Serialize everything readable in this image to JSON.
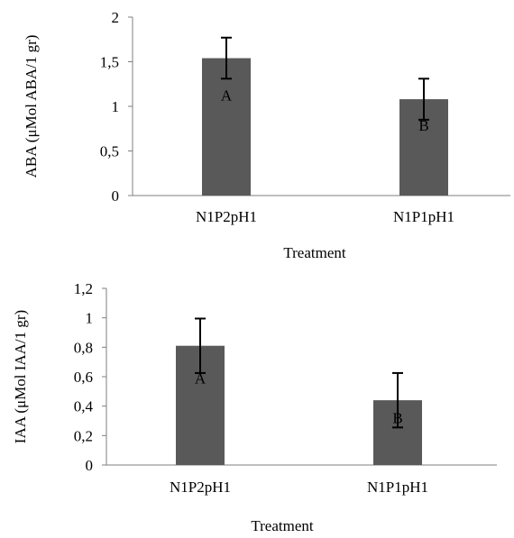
{
  "chart_data": [
    {
      "type": "bar",
      "categories": [
        "N1P2pH1",
        "N1P1pH1"
      ],
      "values": [
        1.54,
        1.08
      ],
      "error": [
        0.23,
        0.23
      ],
      "significance": [
        "A",
        "B"
      ],
      "title": "",
      "xlabel": "Treatment",
      "ylabel": "ABA (μMol ABA/1 gr)",
      "ylim": [
        0,
        2
      ],
      "yticks": [
        "0",
        "0,5",
        "1",
        "1,5",
        "2"
      ],
      "ytick_values": [
        0,
        0.5,
        1,
        1.5,
        2
      ],
      "bar_color": "#595959",
      "grid": false
    },
    {
      "type": "bar",
      "categories": [
        "N1P2pH1",
        "N1P1pH1"
      ],
      "values": [
        0.81,
        0.44
      ],
      "error": [
        0.185,
        0.185
      ],
      "significance": [
        "A",
        "B"
      ],
      "title": "",
      "xlabel": "Treatment",
      "ylabel": "IAA (μMol IAA/1 gr)",
      "ylim": [
        0,
        1.2
      ],
      "yticks": [
        "0",
        "0,2",
        "0,4",
        "0,6",
        "0,8",
        "1",
        "1,2"
      ],
      "ytick_values": [
        0,
        0.2,
        0.4,
        0.6,
        0.8,
        1,
        1.2
      ],
      "bar_color": "#595959",
      "grid": false
    }
  ]
}
